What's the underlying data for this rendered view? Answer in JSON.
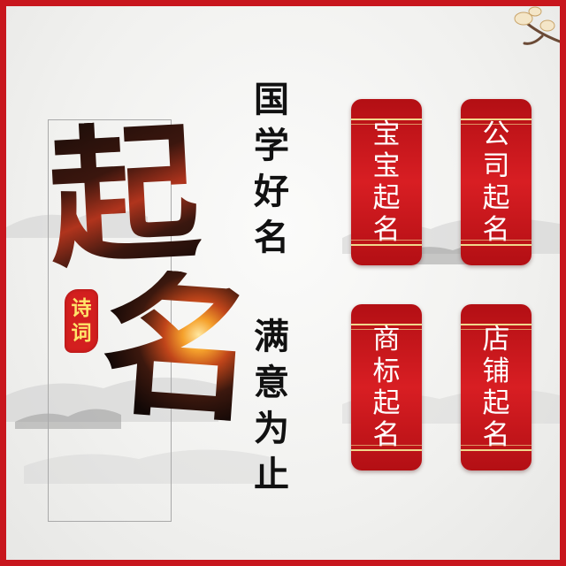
{
  "main_title": [
    "起",
    "名"
  ],
  "seal": [
    "诗",
    "词"
  ],
  "slogan_top": [
    "国",
    "学",
    "好",
    "名"
  ],
  "slogan_bottom": [
    "满",
    "意",
    "为",
    "止"
  ],
  "services": [
    {
      "chars": [
        "宝",
        "宝",
        "起",
        "名"
      ]
    },
    {
      "chars": [
        "公",
        "司",
        "起",
        "名"
      ]
    },
    {
      "chars": [
        "商",
        "标",
        "起",
        "名"
      ]
    },
    {
      "chars": [
        "店",
        "铺",
        "起",
        "名"
      ]
    }
  ],
  "colors": {
    "border": "#c8161d",
    "card": "#d81e23",
    "card_trim": "#f0d78c",
    "seal": "#d31f1f",
    "seal_text": "#ffe56a",
    "ink": "#111111"
  }
}
